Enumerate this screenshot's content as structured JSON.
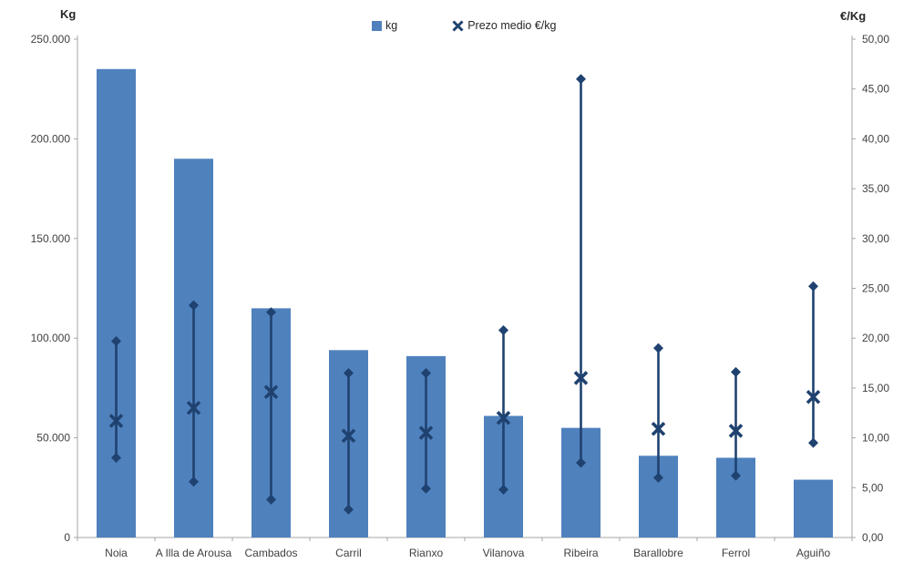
{
  "page": {
    "background": "#FFFFFF"
  },
  "chart_data": {
    "type": "bar",
    "title": "",
    "categories": [
      "Noia",
      "A Illa de Arousa",
      "Cambados",
      "Carril",
      "Rianxo",
      "Vilanova",
      "Ribeira",
      "Barallobre",
      "Ferrol",
      "Aguiño"
    ],
    "series": [
      {
        "name": "kg",
        "type": "bar",
        "axis": "left",
        "values": [
          235000,
          190000,
          115000,
          94000,
          91000,
          61000,
          55000,
          41000,
          40000,
          29000
        ]
      },
      {
        "name": "Prezo medio €/kg",
        "type": "hilo-average",
        "axis": "right",
        "avg": [
          11.7,
          13.0,
          14.6,
          10.2,
          10.5,
          12.0,
          16.0,
          10.9,
          10.7,
          14.1
        ],
        "high": [
          19.7,
          23.3,
          22.6,
          16.5,
          16.5,
          20.8,
          46.0,
          19.0,
          16.6,
          25.2
        ],
        "low": [
          8.0,
          5.6,
          3.8,
          2.8,
          4.9,
          4.8,
          7.5,
          6.0,
          6.2,
          9.5
        ]
      }
    ],
    "left_axis": {
      "title": "Kg",
      "min": 0,
      "max": 250000,
      "step": 50000,
      "tick_labels": [
        "250.000",
        "200.000",
        "150.000",
        "100.000",
        "50.000",
        "0"
      ]
    },
    "right_axis": {
      "title": "€/Kg",
      "min": 0,
      "max": 50,
      "step": 5,
      "tick_labels": [
        "50,00",
        "45,00",
        "40,00",
        "35,00",
        "30,00",
        "25,00",
        "20,00",
        "15,00",
        "10,00",
        "5,00",
        "0,00"
      ]
    },
    "grid": false,
    "legend_position": "top",
    "legend": [
      {
        "label": "kg",
        "marker": "square"
      },
      {
        "label": "Prezo medio €/kg",
        "marker": "x"
      }
    ]
  },
  "colors": {
    "bar": "#4F81BD",
    "marker_line": "#1F4270",
    "marker_x": "#1F4270",
    "axis_line": "#A6A6A6",
    "text": "#404040",
    "background": "#FFFFFF"
  }
}
